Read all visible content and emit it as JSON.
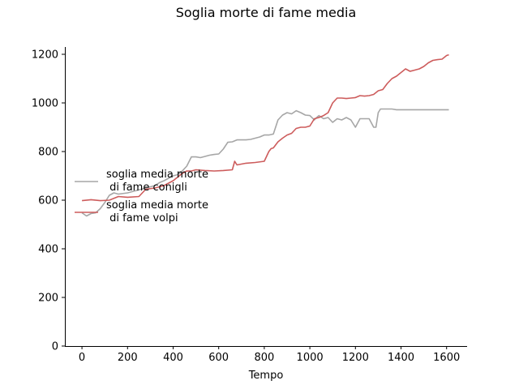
{
  "chart_data": {
    "type": "line",
    "title": "Soglia morte di fame media",
    "xlabel": "Tempo",
    "ylabel": "",
    "xlim": [
      -75,
      1690
    ],
    "ylim": [
      0,
      1230
    ],
    "xticks": [
      0,
      200,
      400,
      600,
      800,
      1000,
      1200,
      1400,
      1600
    ],
    "yticks": [
      0,
      200,
      400,
      600,
      800,
      1000,
      1200
    ],
    "grid": false,
    "legend": "center-left",
    "series": [
      {
        "name": "soglia media morte\n di fame conigli",
        "color": "#a6a6a6",
        "x": [
          0,
          20,
          40,
          60,
          80,
          100,
          120,
          140,
          160,
          200,
          240,
          280,
          300,
          320,
          340,
          360,
          380,
          400,
          420,
          440,
          460,
          480,
          500,
          520,
          540,
          560,
          580,
          600,
          620,
          640,
          660,
          680,
          700,
          720,
          740,
          760,
          780,
          800,
          820,
          840,
          860,
          880,
          900,
          920,
          940,
          960,
          980,
          1000,
          1020,
          1030,
          1040,
          1060,
          1080,
          1100,
          1120,
          1140,
          1160,
          1180,
          1200,
          1220,
          1240,
          1260,
          1280,
          1290,
          1300,
          1310,
          1320,
          1340,
          1360,
          1380,
          1400,
          1450,
          1500,
          1550,
          1600,
          1610
        ],
        "y": [
          548,
          535,
          545,
          548,
          565,
          590,
          620,
          630,
          625,
          630,
          640,
          650,
          655,
          660,
          672,
          680,
          690,
          700,
          705,
          720,
          740,
          778,
          778,
          775,
          780,
          785,
          788,
          790,
          810,
          838,
          840,
          848,
          848,
          848,
          850,
          855,
          860,
          868,
          868,
          872,
          930,
          950,
          960,
          955,
          968,
          960,
          950,
          948,
          930,
          940,
          948,
          935,
          940,
          920,
          935,
          930,
          940,
          930,
          900,
          935,
          935,
          935,
          900,
          900,
          960,
          975,
          975,
          975,
          975,
          972,
          972,
          972,
          972,
          972,
          972,
          972
        ]
      },
      {
        "name": "soglia media morte\n di fame volpi",
        "color": "#cd5c5c",
        "x": [
          0,
          40,
          80,
          120,
          160,
          200,
          250,
          280,
          320,
          360,
          400,
          440,
          460,
          480,
          500,
          540,
          580,
          620,
          660,
          670,
          680,
          720,
          760,
          800,
          820,
          830,
          840,
          860,
          880,
          900,
          920,
          940,
          960,
          980,
          1000,
          1020,
          1040,
          1060,
          1080,
          1100,
          1120,
          1140,
          1160,
          1180,
          1200,
          1220,
          1240,
          1260,
          1280,
          1300,
          1320,
          1340,
          1360,
          1380,
          1400,
          1420,
          1440,
          1460,
          1480,
          1500,
          1520,
          1540,
          1560,
          1580,
          1600,
          1610
        ],
        "y": [
          598,
          602,
          598,
          600,
          615,
          612,
          615,
          645,
          650,
          660,
          680,
          710,
          720,
          720,
          725,
          722,
          720,
          722,
          725,
          760,
          745,
          752,
          755,
          760,
          800,
          812,
          815,
          840,
          855,
          868,
          875,
          895,
          900,
          900,
          905,
          935,
          940,
          948,
          960,
          1000,
          1020,
          1020,
          1018,
          1020,
          1022,
          1030,
          1028,
          1030,
          1035,
          1050,
          1055,
          1080,
          1100,
          1110,
          1125,
          1140,
          1130,
          1135,
          1140,
          1150,
          1165,
          1175,
          1178,
          1180,
          1195,
          1198
        ]
      }
    ]
  }
}
